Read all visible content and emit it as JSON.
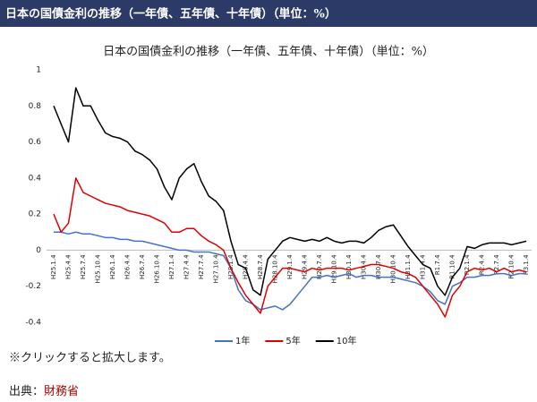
{
  "header": {
    "title": "日本の国債金利の推移（一年債、五年債、十年債）（単位：%）"
  },
  "chart_data": {
    "type": "line",
    "title": "日本の国債金利の推移（一年債、五年債、十年債）（単位：%）",
    "categories": [
      "H25.1.4",
      null,
      "H25.4.4",
      null,
      "H25.7.4",
      null,
      "H25.10.4",
      null,
      "H26.1.4",
      null,
      "H26.4.4",
      null,
      "H26.7.4",
      null,
      "H26.10.4",
      null,
      "H27.1.4",
      null,
      "H27.4.4",
      null,
      "H27.7.4",
      null,
      "H27.10.4",
      null,
      "H28.1.4",
      null,
      "H28.4.4",
      null,
      "H28.7.4",
      null,
      "H28.10.4",
      null,
      "H29.1.4",
      null,
      "H29.4.4",
      null,
      "H29.7.4",
      null,
      "H29.10.4",
      null,
      "H30.1.4",
      null,
      "H30.4.4",
      null,
      "H30.7.4",
      null,
      "H30.10.4",
      null,
      "H31.1.4",
      null,
      "H31.4.4",
      null,
      "R1.7.4",
      null,
      "R1.10.4",
      null,
      "R2.1.4",
      null,
      "R2.4.4",
      null,
      "R2.7.4",
      null,
      "R2.10.4",
      null,
      "R3.1.4"
    ],
    "series": [
      {
        "name": "1年",
        "color": "#4472c4",
        "values": [
          0.1,
          0.1,
          0.09,
          0.1,
          0.09,
          0.09,
          0.08,
          0.07,
          0.07,
          0.06,
          0.06,
          0.05,
          0.05,
          0.04,
          0.03,
          0.02,
          0.01,
          0.0,
          0.0,
          -0.01,
          -0.01,
          -0.01,
          -0.02,
          -0.03,
          -0.1,
          -0.22,
          -0.28,
          -0.3,
          -0.33,
          -0.32,
          -0.31,
          -0.33,
          -0.3,
          -0.25,
          -0.2,
          -0.15,
          -0.15,
          -0.14,
          -0.15,
          -0.14,
          -0.13,
          -0.15,
          -0.14,
          -0.14,
          -0.15,
          -0.15,
          -0.15,
          -0.16,
          -0.17,
          -0.18,
          -0.2,
          -0.23,
          -0.28,
          -0.3,
          -0.2,
          -0.18,
          -0.15,
          -0.15,
          -0.14,
          -0.14,
          -0.13,
          -0.13,
          -0.14,
          -0.13,
          -0.13
        ]
      },
      {
        "name": "5年",
        "color": "#e00000",
        "values": [
          0.2,
          0.1,
          0.15,
          0.4,
          0.32,
          0.3,
          0.28,
          0.26,
          0.25,
          0.24,
          0.22,
          0.21,
          0.2,
          0.19,
          0.17,
          0.15,
          0.1,
          0.1,
          0.12,
          0.12,
          0.08,
          0.05,
          0.03,
          0.0,
          -0.1,
          -0.18,
          -0.25,
          -0.3,
          -0.35,
          -0.2,
          -0.15,
          -0.1,
          -0.1,
          -0.11,
          -0.12,
          -0.1,
          -0.11,
          -0.1,
          -0.1,
          -0.1,
          -0.11,
          -0.1,
          -0.09,
          -0.08,
          -0.08,
          -0.09,
          -0.1,
          -0.12,
          -0.13,
          -0.15,
          -0.2,
          -0.25,
          -0.3,
          -0.37,
          -0.25,
          -0.2,
          -0.12,
          -0.1,
          -0.11,
          -0.1,
          -0.12,
          -0.1,
          -0.12,
          -0.11,
          -0.12
        ]
      },
      {
        "name": "10年",
        "color": "#000000",
        "values": [
          0.8,
          0.7,
          0.6,
          0.9,
          0.8,
          0.8,
          0.72,
          0.65,
          0.63,
          0.62,
          0.6,
          0.55,
          0.53,
          0.5,
          0.45,
          0.35,
          0.28,
          0.4,
          0.45,
          0.48,
          0.38,
          0.3,
          0.27,
          0.22,
          0.05,
          -0.08,
          -0.1,
          -0.22,
          -0.25,
          -0.05,
          0.0,
          0.05,
          0.07,
          0.06,
          0.05,
          0.06,
          0.05,
          0.07,
          0.05,
          0.04,
          0.05,
          0.05,
          0.04,
          0.07,
          0.11,
          0.13,
          0.14,
          0.08,
          0.02,
          -0.03,
          -0.08,
          -0.1,
          -0.2,
          -0.25,
          -0.15,
          -0.1,
          0.02,
          0.01,
          0.03,
          0.04,
          0.04,
          0.04,
          0.03,
          0.04,
          0.05
        ]
      }
    ],
    "ylim": [
      -0.4,
      1
    ],
    "yticks": [
      -0.4,
      -0.2,
      0,
      0.2,
      0.4,
      0.6,
      0.8,
      1
    ],
    "grid": false,
    "legend": "bottom"
  },
  "notes": {
    "click": "※クリックすると拡大します。",
    "source_label": "出典：",
    "source_link": "財務省"
  }
}
